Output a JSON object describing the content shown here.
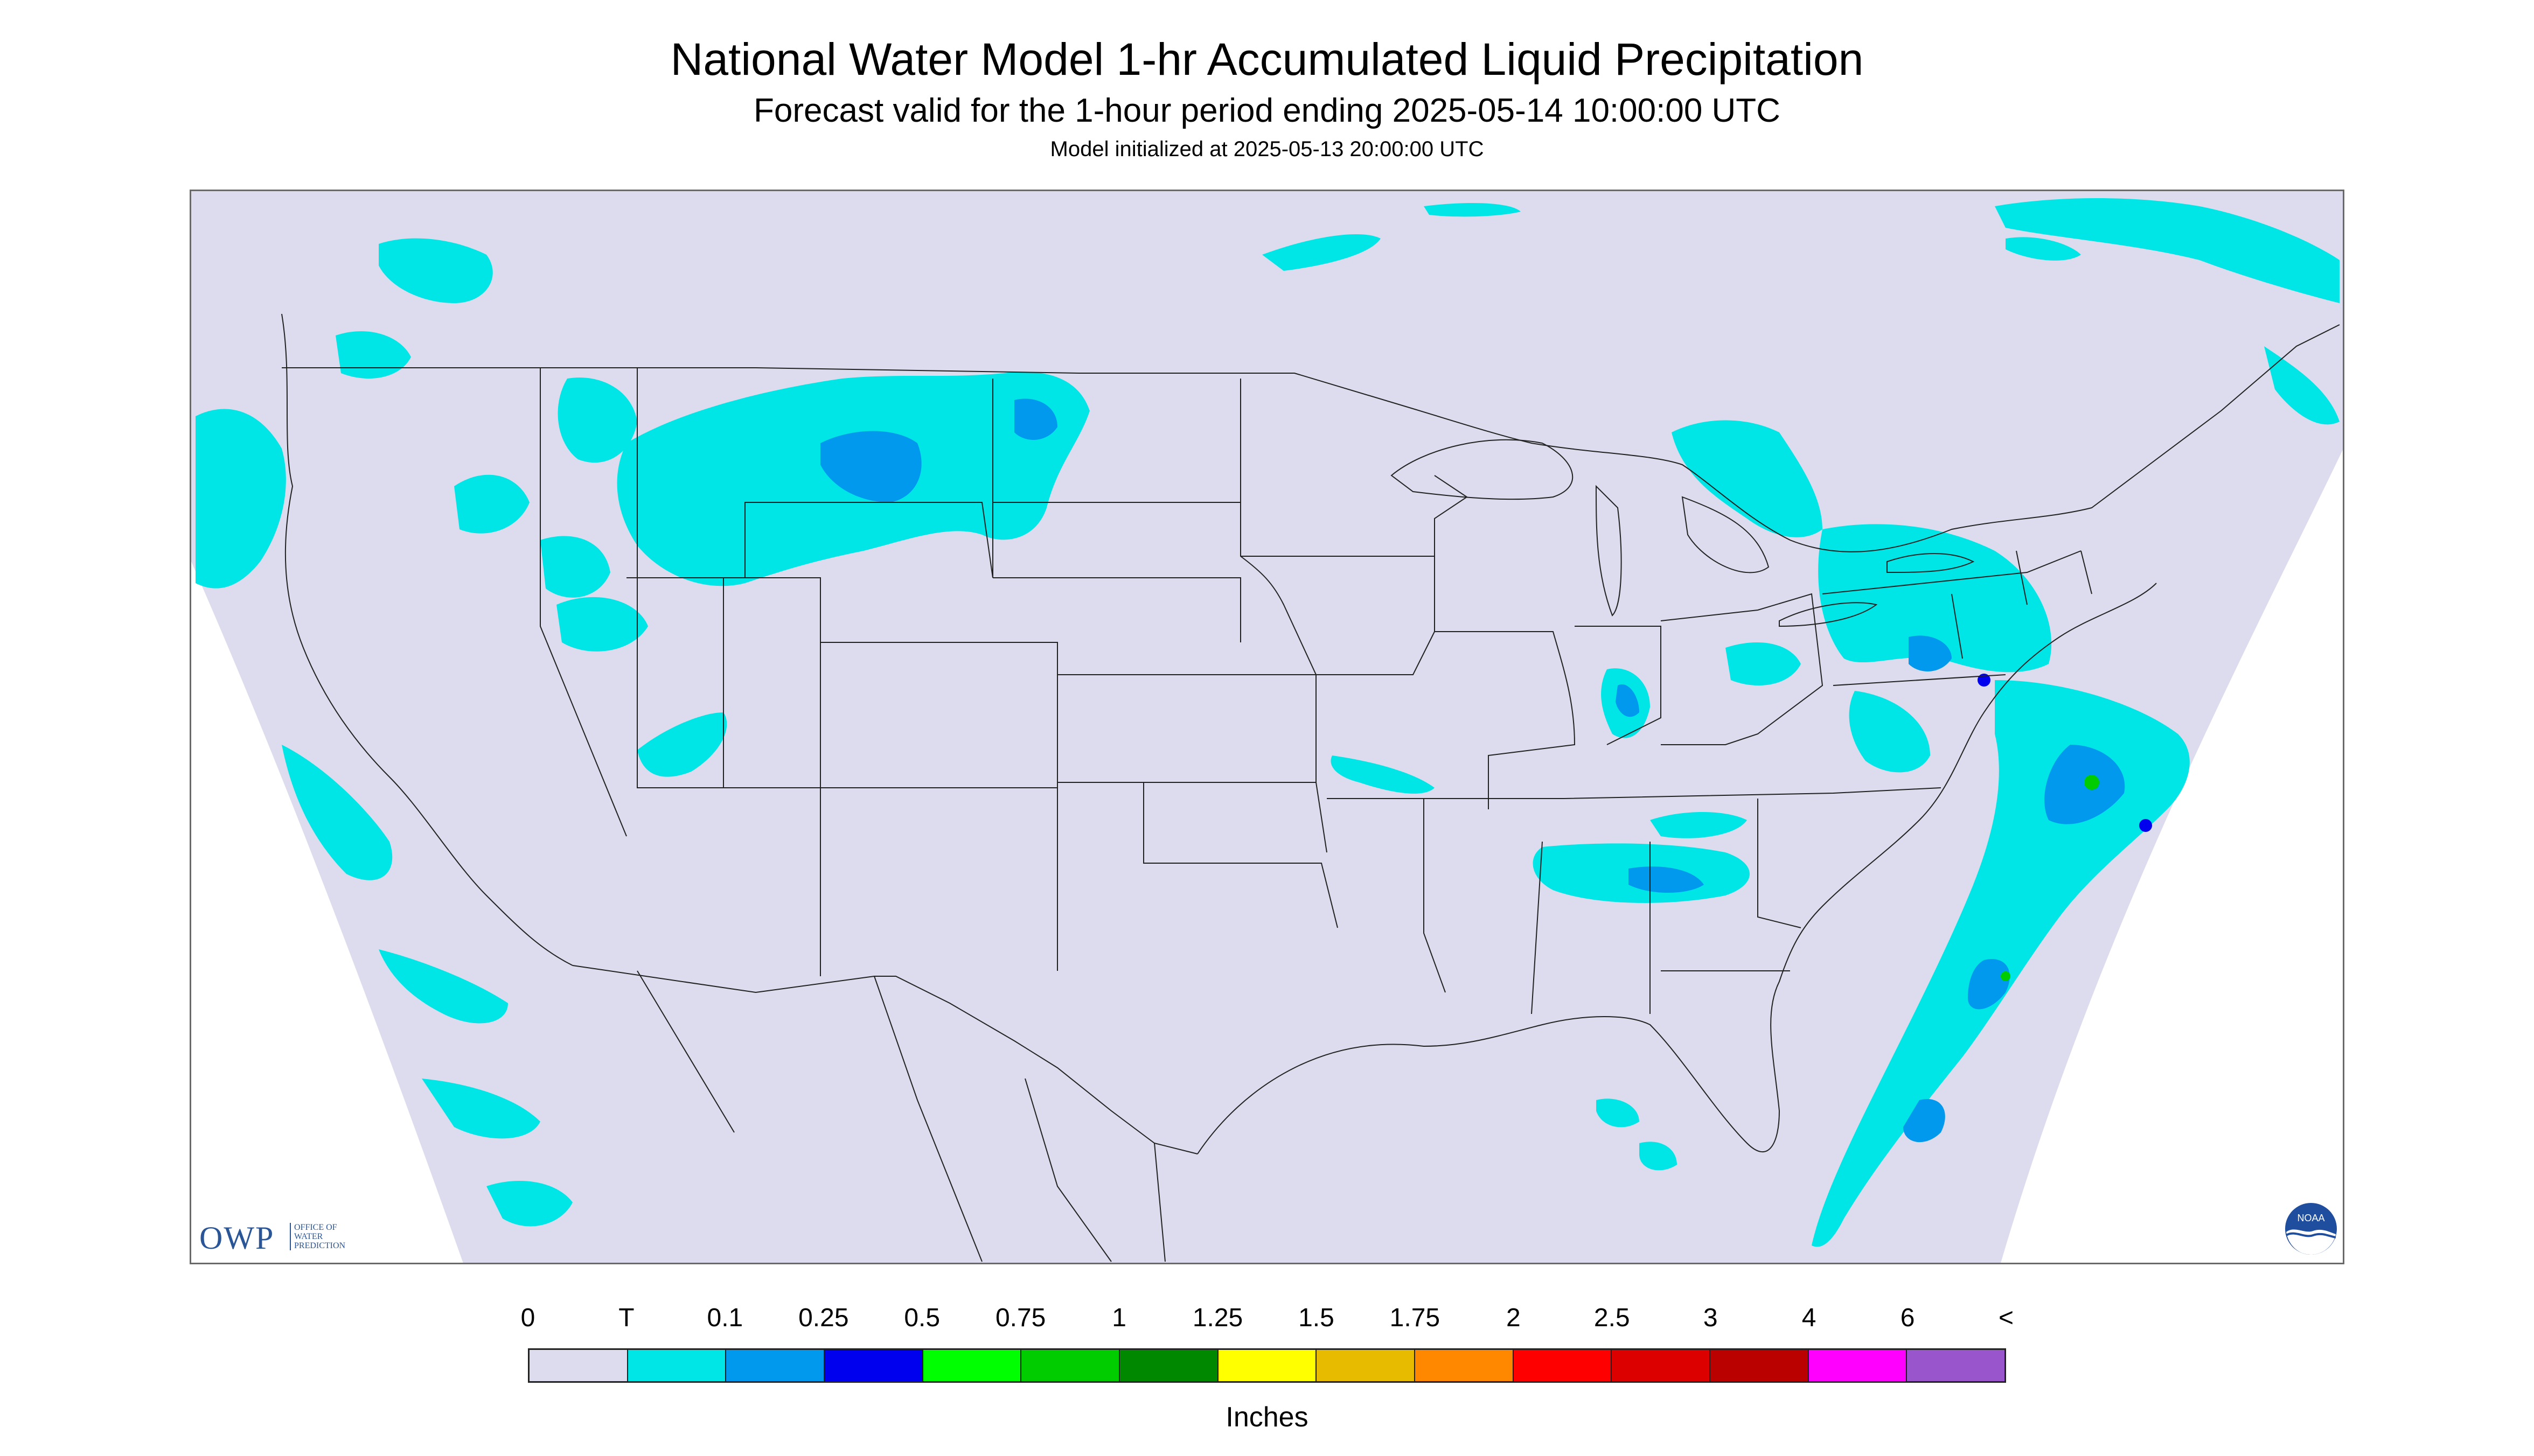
{
  "title": "National Water Model 1-hr Accumulated Liquid Precipitation",
  "subtitle": "Forecast valid for the 1-hour period ending 2025-05-14 10:00:00 UTC",
  "init_line": "Model initialized at 2025-05-13 20:00:00 UTC",
  "logos": {
    "owp_text": "OWP",
    "owp_sub": [
      "OFFICE OF",
      "WATER",
      "PREDICTION"
    ],
    "noaa_text": "NOAA"
  },
  "legend": {
    "units": "Inches",
    "tick_labels": [
      "0",
      "T",
      "0.1",
      "0.25",
      "0.5",
      "0.75",
      "1",
      "1.25",
      "1.5",
      "1.75",
      "2",
      "2.5",
      "3",
      "4",
      "6",
      "<"
    ],
    "colors": [
      "#dcdcee",
      "#00e5e5",
      "#0099ee",
      "#0000ee",
      "#00ff00",
      "#00cc00",
      "#008800",
      "#ffff00",
      "#e6bb00",
      "#ff8800",
      "#ff0000",
      "#dd0000",
      "#bb0000",
      "#ff00ff",
      "#9955cc"
    ]
  },
  "colors": {
    "map_background": "#dcdcee",
    "outside_domain": "#ffffff",
    "boundaries": "#222222",
    "trace": "#00e5e5",
    "light": "#0099ee",
    "moderate": "#0000ee"
  }
}
